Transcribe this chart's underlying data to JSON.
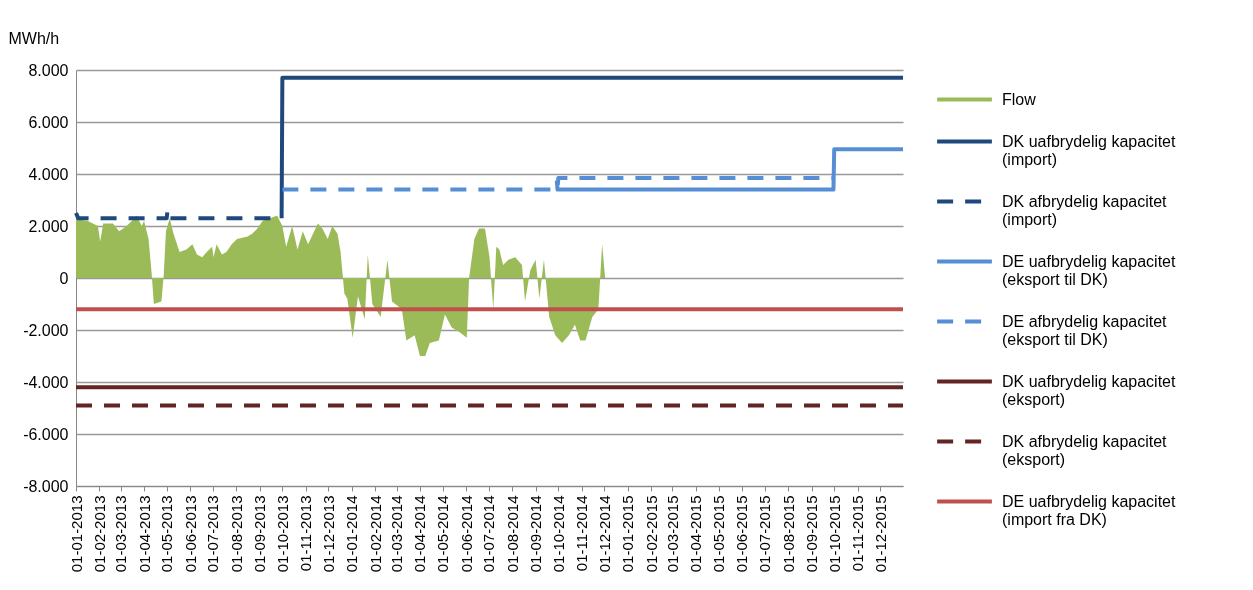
{
  "chart_data": {
    "type": "line",
    "ylabel": "MWh/h",
    "grid": "y",
    "legend": "right",
    "xlim": [
      "2013-01-01",
      "2015-12-31"
    ],
    "xticks": [
      {
        "value": "2013-01-01",
        "label": "01-01-2013"
      },
      {
        "value": "2013-02-01",
        "label": "01-02-2013"
      },
      {
        "value": "2013-03-01",
        "label": "01-03-2013"
      },
      {
        "value": "2013-04-01",
        "label": "01-04-2013"
      },
      {
        "value": "2013-05-01",
        "label": "01-05-2013"
      },
      {
        "value": "2013-06-01",
        "label": "01-06-2013"
      },
      {
        "value": "2013-07-01",
        "label": "01-07-2013"
      },
      {
        "value": "2013-08-01",
        "label": "01-08-2013"
      },
      {
        "value": "2013-09-01",
        "label": "01-09-2013"
      },
      {
        "value": "2013-10-01",
        "label": "01-10-2013"
      },
      {
        "value": "2013-11-01",
        "label": "01-11-2013"
      },
      {
        "value": "2013-12-01",
        "label": "01-12-2013"
      },
      {
        "value": "2014-01-01",
        "label": "01-01-2014"
      },
      {
        "value": "2014-02-01",
        "label": "01-02-2014"
      },
      {
        "value": "2014-03-01",
        "label": "01-03-2014"
      },
      {
        "value": "2014-04-01",
        "label": "01-04-2014"
      },
      {
        "value": "2014-05-01",
        "label": "01-05-2014"
      },
      {
        "value": "2014-06-01",
        "label": "01-06-2014"
      },
      {
        "value": "2014-07-01",
        "label": "01-07-2014"
      },
      {
        "value": "2014-08-01",
        "label": "01-08-2014"
      },
      {
        "value": "2014-09-01",
        "label": "01-09-2014"
      },
      {
        "value": "2014-10-01",
        "label": "01-10-2014"
      },
      {
        "value": "2014-11-01",
        "label": "01-11-2014"
      },
      {
        "value": "2014-12-01",
        "label": "01-12-2014"
      },
      {
        "value": "2015-01-01",
        "label": "01-01-2015"
      },
      {
        "value": "2015-02-01",
        "label": "01-02-2015"
      },
      {
        "value": "2015-03-01",
        "label": "01-03-2015"
      },
      {
        "value": "2015-04-01",
        "label": "01-04-2015"
      },
      {
        "value": "2015-05-01",
        "label": "01-05-2015"
      },
      {
        "value": "2015-06-01",
        "label": "01-06-2015"
      },
      {
        "value": "2015-07-01",
        "label": "01-07-2015"
      },
      {
        "value": "2015-08-01",
        "label": "01-08-2015"
      },
      {
        "value": "2015-09-01",
        "label": "01-09-2015"
      },
      {
        "value": "2015-10-01",
        "label": "01-10-2015"
      },
      {
        "value": "2015-11-01",
        "label": "01-11-2015"
      },
      {
        "value": "2015-12-01",
        "label": "01-12-2015"
      }
    ],
    "ylim": [
      -8000,
      8000
    ],
    "yticks": [
      {
        "value": -8000,
        "label": "-8.000"
      },
      {
        "value": -6000,
        "label": "-6.000"
      },
      {
        "value": -4000,
        "label": "-4.000"
      },
      {
        "value": -2000,
        "label": "-2.000"
      },
      0,
      {
        "value": 2000,
        "label": "2.000"
      },
      {
        "value": 4000,
        "label": "4.000"
      },
      {
        "value": 6000,
        "label": "6.000"
      },
      {
        "value": 8000,
        "label": "8.000"
      }
    ],
    "series": [
      {
        "name": "Flow",
        "type": "area",
        "color": "#9bbb59",
        "x": [
          "2013-01-01",
          "2013-01-16",
          "2013-01-30",
          "2013-02-02",
          "2013-02-06",
          "2013-02-19",
          "2013-02-27",
          "2013-03-09",
          "2013-03-16",
          "2013-03-22",
          "2013-03-29",
          "2013-04-01",
          "2013-04-07",
          "2013-04-11",
          "2013-04-14",
          "2013-04-24",
          "2013-04-27",
          "2013-04-30",
          "2013-05-05",
          "2013-05-10",
          "2013-05-18",
          "2013-05-27",
          "2013-06-04",
          "2013-06-10",
          "2013-06-17",
          "2013-06-23",
          "2013-06-30",
          "2013-07-02",
          "2013-07-06",
          "2013-07-13",
          "2013-07-19",
          "2013-07-26",
          "2013-08-02",
          "2013-08-16",
          "2013-08-22",
          "2013-08-29",
          "2013-09-05",
          "2013-09-15",
          "2013-09-24",
          "2013-10-01",
          "2013-10-06",
          "2013-10-14",
          "2013-10-21",
          "2013-10-28",
          "2013-11-04",
          "2013-11-17",
          "2013-11-23",
          "2013-11-30",
          "2013-12-06",
          "2013-12-13",
          "2013-12-17",
          "2013-12-22",
          "2013-12-26",
          "2014-01-02",
          "2014-01-09",
          "2014-01-18",
          "2014-01-22",
          "2014-01-28",
          "2014-02-08",
          "2014-02-17",
          "2014-02-23",
          "2014-03-08",
          "2014-03-14",
          "2014-03-25",
          "2014-04-01",
          "2014-04-08",
          "2014-04-14",
          "2014-04-26",
          "2014-05-04",
          "2014-05-13",
          "2014-05-24",
          "2014-06-02",
          "2014-06-05",
          "2014-06-12",
          "2014-06-18",
          "2014-06-26",
          "2014-07-02",
          "2014-07-07",
          "2014-07-11",
          "2014-07-15",
          "2014-07-20",
          "2014-07-27",
          "2014-08-05",
          "2014-08-14",
          "2014-08-18",
          "2014-08-25",
          "2014-09-01",
          "2014-09-06",
          "2014-09-12",
          "2014-09-19",
          "2014-09-27",
          "2014-10-06",
          "2014-10-15",
          "2014-10-23",
          "2014-10-30",
          "2014-11-06",
          "2014-11-15",
          "2014-11-23",
          "2014-11-28",
          "2014-12-02"
        ],
        "values": [
          2250,
          2200,
          2000,
          1400,
          2100,
          2100,
          1800,
          2000,
          2200,
          2400,
          2000,
          2200,
          1500,
          200,
          -1000,
          -900,
          100,
          1800,
          2300,
          1700,
          1000,
          1100,
          1300,
          900,
          800,
          1000,
          1200,
          800,
          1300,
          900,
          1000,
          1300,
          1500,
          1600,
          1700,
          1900,
          2200,
          2300,
          2400,
          2000,
          1200,
          2000,
          1100,
          1800,
          1300,
          2100,
          1900,
          1500,
          2000,
          1700,
          1000,
          -600,
          -800,
          -2300,
          -700,
          -1600,
          900,
          -1000,
          -1500,
          700,
          -900,
          -1200,
          -2400,
          -2200,
          -3000,
          -3000,
          -2500,
          -2400,
          -1400,
          -1900,
          -2100,
          -2300,
          0,
          1500,
          1900,
          1900,
          800,
          -1200,
          1200,
          1100,
          500,
          700,
          800,
          500,
          -900,
          300,
          700,
          -800,
          700,
          -1500,
          -2200,
          -2500,
          -2200,
          -1800,
          -2400,
          -2400,
          -1500,
          -1200,
          1300,
          0
        ]
      },
      {
        "name": "DK uafbrydelig kapacitet (import)",
        "color": "#1f497d",
        "line_style": "solid",
        "x": [
          "2013-09-30",
          "2013-10-01",
          "2015-12-31"
        ],
        "values": [
          2300,
          7700,
          7700
        ]
      },
      {
        "name": "DK afbrydelig kapacitet (import)",
        "color": "#1f497d",
        "line_style": "dashed",
        "x": [
          "2013-01-01",
          "2013-01-04",
          "2013-05-01",
          "2013-05-02",
          "2013-05-03",
          "2013-09-30"
        ],
        "values": [
          2500,
          2300,
          2300,
          2600,
          2300,
          2300
        ]
      },
      {
        "name": "DE uafbrydelig kapacitet (eksport til DK)",
        "color": "#558ed5",
        "line_style": "solid",
        "x": [
          "2014-09-29",
          "2014-09-30",
          "2015-09-30",
          "2015-10-01",
          "2015-12-31"
        ],
        "values": [
          3750,
          3400,
          3400,
          4950,
          4950
        ]
      },
      {
        "name": "DE afbrydelig kapacitet (eksport til DK)",
        "color": "#558ed5",
        "line_style": "dashed",
        "x": [
          "2013-10-01",
          "2014-09-30",
          "2014-10-01",
          "2015-09-30"
        ],
        "values": [
          3400,
          3400,
          3850,
          3850
        ]
      },
      {
        "name": "DK uafbrydelig kapacitet (eksport)",
        "color": "#632523",
        "line_style": "solid",
        "x": [
          "2013-01-01",
          "2015-12-31"
        ],
        "values": [
          -4200,
          -4200
        ]
      },
      {
        "name": "DK afbrydelig kapacitet (eksport)",
        "color": "#632523",
        "line_style": "dashed",
        "x": [
          "2013-01-01",
          "2015-12-31"
        ],
        "values": [
          -4900,
          -4900
        ]
      },
      {
        "name": "DE uafbrydelig kapacitet (import fra DK)",
        "color": "#c0504d",
        "line_style": "solid",
        "x": [
          "2013-01-01",
          "2015-12-31"
        ],
        "values": [
          -1200,
          -1200
        ]
      }
    ]
  }
}
